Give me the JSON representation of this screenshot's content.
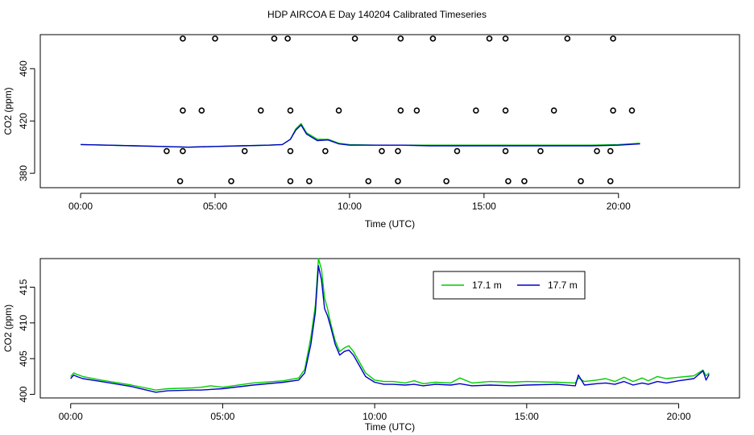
{
  "title": "HDP AIRCOA E  Day 140204  Calibrated Timeseries",
  "chart_data": [
    {
      "type": "line",
      "panel": "top",
      "xlabel": "Time (UTC)",
      "ylabel": "CO2 (ppm)",
      "xlim": [
        -1.5,
        24.5
      ],
      "ylim": [
        369,
        486
      ],
      "xticks": [
        0,
        5,
        10,
        15,
        20
      ],
      "xtick_labels": [
        "00:00",
        "05:00",
        "10:00",
        "15:00",
        "20:00"
      ],
      "yticks": [
        380,
        420,
        460
      ],
      "ytick_labels": [
        "380",
        "420",
        "460"
      ],
      "series": [
        {
          "name": "17.1 m",
          "color": "#00cc00",
          "x": [
            0,
            1,
            2,
            3,
            4,
            5,
            6,
            7,
            7.5,
            7.8,
            8.0,
            8.2,
            8.4,
            8.8,
            9.2,
            9.6,
            10,
            11,
            12,
            13,
            14,
            15,
            16,
            17,
            18,
            19,
            20,
            20.8
          ],
          "y": [
            402,
            401.5,
            401,
            400.5,
            400,
            400.5,
            401,
            401.5,
            402,
            406,
            414,
            418,
            411,
            406,
            406,
            403,
            402,
            401.5,
            401.5,
            401.5,
            401.5,
            401.5,
            401.5,
            401.5,
            401.5,
            401.5,
            402,
            403
          ]
        },
        {
          "name": "17.7 m",
          "color": "#0000cc",
          "x": [
            0,
            1,
            2,
            3,
            4,
            5,
            6,
            7,
            7.5,
            7.8,
            8.0,
            8.2,
            8.4,
            8.8,
            9.2,
            9.6,
            10,
            11,
            12,
            13,
            14,
            15,
            16,
            17,
            18,
            19,
            20,
            20.8
          ],
          "y": [
            402,
            401.5,
            401,
            400.5,
            400,
            400.5,
            401,
            401.5,
            402,
            406,
            413,
            417,
            410,
            405,
            405.5,
            402.5,
            401.5,
            401.5,
            401.5,
            401,
            401,
            401,
            401,
            401,
            401,
            401,
            401.5,
            402.5
          ]
        }
      ],
      "scatter": {
        "name": "circles",
        "x": [
          3.8,
          5.0,
          7.2,
          7.7,
          10.2,
          11.9,
          13.1,
          15.2,
          15.8,
          18.1,
          19.8,
          3.8,
          4.5,
          6.7,
          7.8,
          9.6,
          11.9,
          12.5,
          14.7,
          15.8,
          17.6,
          19.8,
          20.5,
          3.2,
          3.8,
          6.1,
          7.8,
          9.1,
          11.2,
          11.8,
          14.0,
          15.8,
          17.1,
          19.2,
          19.7,
          3.7,
          5.6,
          7.8,
          8.5,
          10.7,
          11.8,
          13.6,
          15.9,
          16.5,
          18.6,
          19.7
        ],
        "y": [
          483,
          483,
          483,
          483,
          483,
          483,
          483,
          483,
          483,
          483,
          483,
          428,
          428,
          428,
          428,
          428,
          428,
          428,
          428,
          428,
          428,
          428,
          428,
          397,
          397,
          397,
          397,
          397,
          397,
          397,
          397,
          397,
          397,
          397,
          397,
          374,
          374,
          374,
          374,
          374,
          374,
          374,
          374,
          374,
          374,
          374
        ]
      }
    },
    {
      "type": "line",
      "panel": "bottom",
      "xlabel": "Time (UTC)",
      "ylabel": "CO2 (ppm)",
      "xlim": [
        -1.0,
        22.0
      ],
      "ylim": [
        399.5,
        419
      ],
      "xticks": [
        0,
        5,
        10,
        15,
        20
      ],
      "xtick_labels": [
        "00:00",
        "05:00",
        "10:00",
        "15:00",
        "20:00"
      ],
      "yticks": [
        400,
        405,
        410,
        415
      ],
      "ytick_labels": [
        "400",
        "405",
        "410",
        "415"
      ],
      "legend": "top-right",
      "series": [
        {
          "name": "17.1 m",
          "color": "#00cc00",
          "x": [
            0,
            0.1,
            0.2,
            0.4,
            1.0,
            2.0,
            2.8,
            3.2,
            4.0,
            4.3,
            4.6,
            5.0,
            6.0,
            7.0,
            7.5,
            7.7,
            7.9,
            8.05,
            8.15,
            8.25,
            8.35,
            8.45,
            8.55,
            8.7,
            8.85,
            9.0,
            9.15,
            9.3,
            9.5,
            9.7,
            10.0,
            10.3,
            10.6,
            11.0,
            11.3,
            11.6,
            12.0,
            12.5,
            12.8,
            13.2,
            13.8,
            14.5,
            15.0,
            16.0,
            16.6,
            16.7,
            16.9,
            17.3,
            17.6,
            17.9,
            18.2,
            18.5,
            18.8,
            19.0,
            19.3,
            19.6,
            20.0,
            20.5,
            20.8,
            20.9,
            21.0
          ],
          "y": [
            402.5,
            403.0,
            402.8,
            402.5,
            402.0,
            401.3,
            400.6,
            400.8,
            400.9,
            401.0,
            401.2,
            401.0,
            401.6,
            401.9,
            402.3,
            403.5,
            408.0,
            412.5,
            419.0,
            417.5,
            413.5,
            412.0,
            410.0,
            407.5,
            406.0,
            406.5,
            406.8,
            406.0,
            404.5,
            403.0,
            402.0,
            401.8,
            401.8,
            401.6,
            401.9,
            401.5,
            401.7,
            401.6,
            402.3,
            401.6,
            401.8,
            401.7,
            401.8,
            401.7,
            401.6,
            402.3,
            401.8,
            402.0,
            402.2,
            401.8,
            402.4,
            401.8,
            402.3,
            401.9,
            402.5,
            402.2,
            402.4,
            402.6,
            403.4,
            402.6,
            403.0
          ]
        },
        {
          "name": "17.7 m",
          "color": "#0000cc",
          "x": [
            0,
            0.1,
            0.2,
            0.4,
            1.0,
            2.0,
            2.8,
            3.2,
            4.0,
            4.3,
            4.6,
            5.0,
            6.0,
            7.0,
            7.5,
            7.7,
            7.9,
            8.05,
            8.15,
            8.25,
            8.35,
            8.45,
            8.55,
            8.7,
            8.85,
            9.0,
            9.15,
            9.3,
            9.5,
            9.7,
            10.0,
            10.3,
            10.6,
            11.0,
            11.3,
            11.6,
            12.0,
            12.5,
            12.8,
            13.2,
            13.8,
            14.5,
            15.0,
            16.0,
            16.6,
            16.7,
            16.9,
            17.3,
            17.6,
            17.9,
            18.2,
            18.5,
            18.8,
            19.0,
            19.3,
            19.6,
            20.0,
            20.5,
            20.8,
            20.9,
            21.0
          ],
          "y": [
            402.2,
            402.7,
            402.5,
            402.2,
            401.8,
            401.1,
            400.3,
            400.5,
            400.6,
            400.6,
            400.7,
            400.8,
            401.3,
            401.7,
            402.0,
            403.0,
            407.0,
            411.5,
            418.0,
            416.0,
            412.0,
            411.0,
            409.5,
            407.0,
            405.5,
            406.0,
            406.2,
            405.5,
            404.0,
            402.5,
            401.7,
            401.4,
            401.4,
            401.3,
            401.4,
            401.2,
            401.4,
            401.3,
            401.5,
            401.2,
            401.3,
            401.2,
            401.3,
            401.4,
            401.2,
            402.7,
            401.3,
            401.5,
            401.6,
            401.4,
            401.8,
            401.3,
            401.6,
            401.4,
            401.8,
            401.6,
            401.9,
            402.2,
            403.3,
            402.0,
            402.8
          ]
        }
      ]
    }
  ]
}
